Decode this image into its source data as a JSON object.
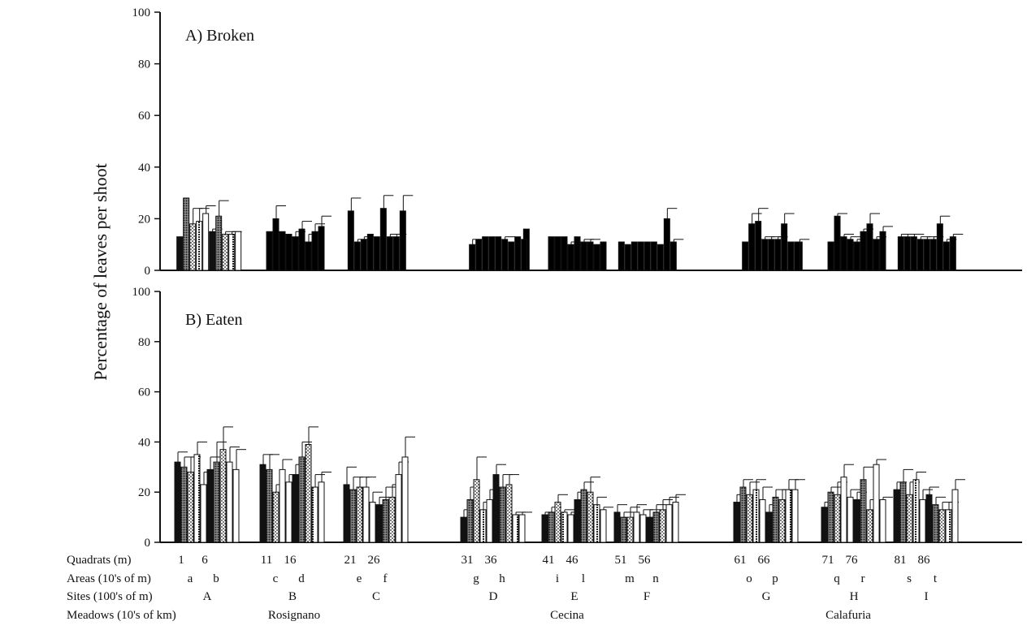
{
  "chart_data": [
    {
      "type": "bar",
      "title": "",
      "panel_label": "A) Broken",
      "ylabel": "Percentage of leaves per shoot",
      "ylim": [
        0,
        100
      ],
      "yticks": [
        0,
        20,
        40,
        60,
        80,
        100
      ],
      "grid": false,
      "error_bars": true,
      "values": [
        13,
        28,
        18,
        19,
        22,
        15,
        21,
        14,
        14,
        15,
        15,
        20,
        15,
        14,
        13,
        16,
        11,
        15,
        17,
        23,
        11,
        12,
        14,
        13,
        24,
        13,
        13,
        23,
        16,
        10,
        12,
        13,
        13,
        13,
        12,
        11,
        13,
        12,
        13,
        13,
        13,
        10,
        13,
        11,
        11,
        10,
        11,
        11,
        10,
        11,
        11,
        11,
        11,
        10,
        20,
        11,
        11,
        11,
        18,
        19,
        12,
        12,
        12,
        18,
        11,
        11,
        11,
        21,
        13,
        12,
        11,
        15,
        18,
        12,
        15,
        13,
        13,
        13,
        12,
        12,
        12,
        18,
        11,
        13
      ],
      "errors": [
        0,
        0,
        6,
        5,
        3,
        1,
        6,
        1,
        1,
        0,
        0,
        5,
        0,
        0,
        2,
        3,
        3,
        3,
        4,
        5,
        1,
        1,
        0,
        0,
        5,
        1,
        1,
        6,
        0,
        2,
        0,
        0,
        0,
        0,
        1,
        0,
        0,
        0,
        0,
        0,
        0,
        1,
        0,
        1,
        1,
        0,
        0,
        0,
        0,
        0,
        0,
        0,
        0,
        0,
        4,
        1,
        1,
        0,
        4,
        5,
        1,
        1,
        1,
        4,
        0,
        0,
        0,
        1,
        1,
        1,
        1,
        1,
        4,
        1,
        2,
        1,
        1,
        1,
        1,
        1,
        1,
        3,
        1,
        1
      ]
    },
    {
      "type": "bar",
      "title": "",
      "panel_label": "B) Eaten",
      "ylabel": "Percentage of leaves per shoot",
      "ylim": [
        0,
        100
      ],
      "yticks": [
        0,
        20,
        40,
        60,
        80,
        100
      ],
      "grid": false,
      "error_bars": true,
      "values": [
        32,
        30,
        28,
        35,
        23,
        29,
        32,
        37,
        32,
        29,
        31,
        29,
        20,
        29,
        24,
        27,
        34,
        39,
        22,
        24,
        23,
        21,
        22,
        22,
        16,
        15,
        17,
        18,
        27,
        34,
        10,
        17,
        25,
        13,
        17,
        27,
        22,
        23,
        11,
        11,
        11,
        12,
        16,
        12,
        11,
        17,
        21,
        20,
        15,
        13,
        12,
        10,
        10,
        12,
        11,
        10,
        12,
        13,
        15,
        16,
        16,
        22,
        19,
        21,
        17,
        12,
        18,
        17,
        21,
        21,
        14,
        20,
        19,
        26,
        18,
        17,
        25,
        13,
        31,
        17,
        21,
        24,
        19,
        25,
        17,
        19,
        15,
        13,
        13,
        21
      ],
      "errors": [
        4,
        4,
        6,
        5,
        5,
        5,
        8,
        9,
        6,
        8,
        4,
        6,
        3,
        4,
        3,
        4,
        6,
        7,
        5,
        4,
        7,
        5,
        4,
        4,
        4,
        3,
        5,
        5,
        5,
        8,
        3,
        5,
        9,
        3,
        4,
        4,
        5,
        4,
        1,
        1,
        1,
        2,
        3,
        1,
        1,
        3,
        3,
        6,
        3,
        1,
        3,
        2,
        4,
        3,
        2,
        3,
        3,
        4,
        3,
        3,
        3,
        3,
        5,
        4,
        5,
        3,
        3,
        4,
        4,
        4,
        2,
        2,
        5,
        5,
        3,
        3,
        5,
        4,
        2,
        1,
        3,
        5,
        5,
        3,
        4,
        3,
        3,
        3,
        3,
        4
      ]
    }
  ],
  "bottom_labels": {
    "quadrats_title": "Quadrats (m)",
    "quadrats": [
      "1",
      "6",
      "11",
      "16",
      "21",
      "26",
      "31",
      "36",
      "41",
      "46",
      "51",
      "56",
      "61",
      "66",
      "71",
      "76",
      "81",
      "86"
    ],
    "areas_title": "Areas (10's of m)",
    "areas": [
      "a",
      "b",
      "c",
      "d",
      "e",
      "f",
      "g",
      "h",
      "i",
      "l",
      "m",
      "n",
      "o",
      "p",
      "q",
      "r",
      "s",
      "t"
    ],
    "sites_title": "Sites (100's of m)",
    "sites": [
      "A",
      "B",
      "C",
      "D",
      "E",
      "F",
      "G",
      "H",
      "I"
    ],
    "meadows_title": "Meadows (10's of km)",
    "meadows": [
      "Rosignano",
      "Cecina",
      "Calafuria"
    ]
  },
  "colors": {
    "ink": "#111111",
    "paper": "#ffffff"
  }
}
